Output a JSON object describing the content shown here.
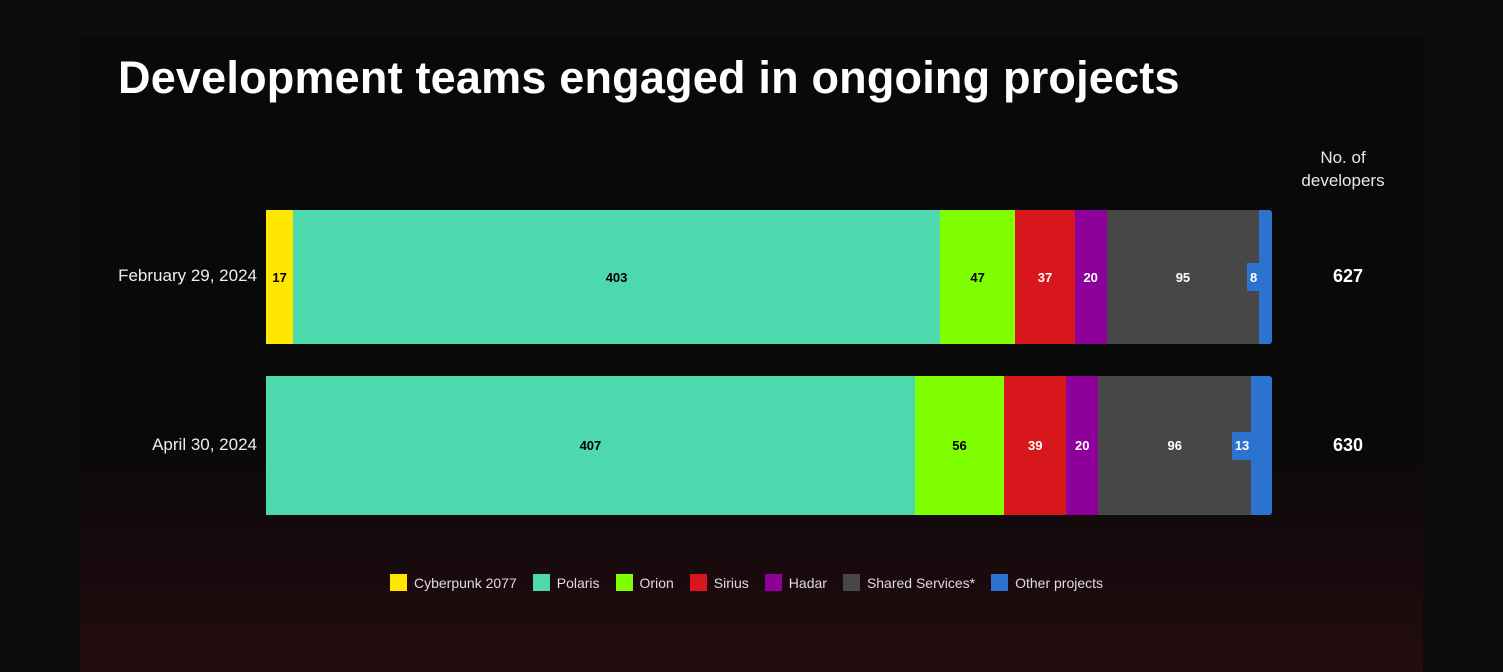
{
  "chart_data": {
    "type": "bar",
    "orientation": "horizontal",
    "stacked": true,
    "normalized": true,
    "title": "Development teams engaged in ongoing projects",
    "total_header": "No. of developers",
    "categories": [
      "February 29, 2024",
      "April 30, 2024"
    ],
    "totals": [
      627,
      630
    ],
    "series": [
      {
        "name": "Cyberpunk 2077",
        "color": "#ffe600",
        "values": [
          17,
          0
        ]
      },
      {
        "name": "Polaris",
        "color": "#4dd9ad",
        "values": [
          403,
          407
        ]
      },
      {
        "name": "Orion",
        "color": "#7fff00",
        "values": [
          47,
          56
        ]
      },
      {
        "name": "Sirius",
        "color": "#d7171b",
        "values": [
          37,
          39
        ]
      },
      {
        "name": "Hadar",
        "color": "#8e009a",
        "values": [
          20,
          20
        ]
      },
      {
        "name": "Shared Services*",
        "color": "#474747",
        "values": [
          95,
          96
        ]
      },
      {
        "name": "Other projects",
        "color": "#2b73cf",
        "values": [
          8,
          13
        ]
      }
    ],
    "legend_position": "bottom",
    "grid": false
  }
}
